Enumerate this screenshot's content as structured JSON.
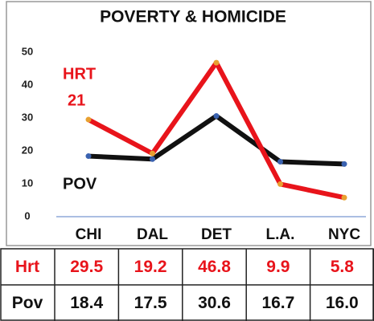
{
  "chart_data": {
    "type": "line",
    "title": "POVERTY & HOMICIDE",
    "categories": [
      "CHI",
      "DAL",
      "DET",
      "L.A.",
      "NYC"
    ],
    "series": [
      {
        "name": "HRT",
        "color": "#e8141b",
        "values": [
          29.5,
          19.2,
          46.8,
          9.9,
          5.8
        ],
        "value_labels": [
          "29.5",
          "19.2",
          "46.8",
          "9.9",
          "5.8"
        ]
      },
      {
        "name": "POV",
        "color": "#111111",
        "values": [
          18.4,
          17.5,
          30.6,
          16.7,
          16.0
        ],
        "value_labels": [
          "18.4",
          "17.5",
          "30.6",
          "16.7",
          "16.0"
        ]
      }
    ],
    "annotations": [
      "21"
    ],
    "ylim": [
      0,
      50
    ],
    "yticks": [
      0,
      10,
      20,
      30,
      40,
      50
    ],
    "grid": false
  },
  "table": {
    "row_labels": [
      "Hrt",
      "Pov"
    ]
  }
}
